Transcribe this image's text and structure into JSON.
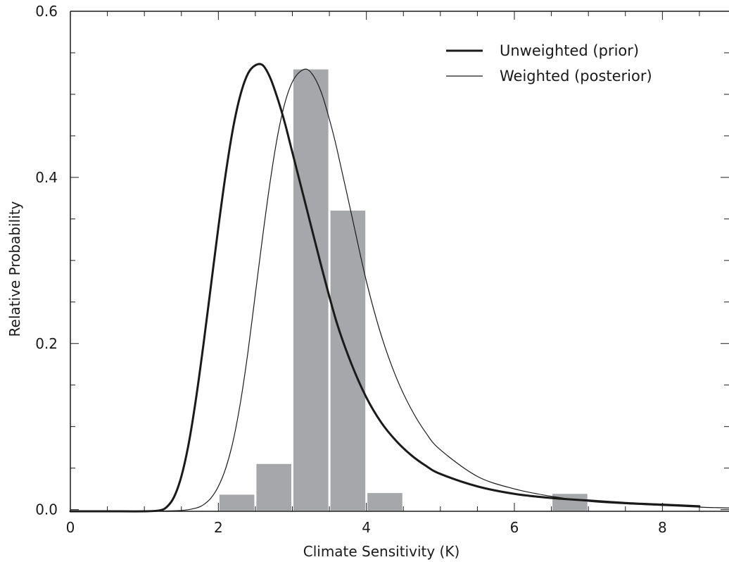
{
  "chart_data": {
    "type": "bar",
    "title": "",
    "xlabel": "Climate Sensitivity (K)",
    "ylabel": "Relative Probability",
    "xlim": [
      0,
      8.9
    ],
    "ylim": [
      -0.002,
      0.6
    ],
    "x_ticks": [
      0,
      2,
      4,
      6,
      8
    ],
    "x_tick_labels": [
      "0",
      "2",
      "4",
      "6",
      "8"
    ],
    "y_ticks": [
      0.0,
      0.2,
      0.4,
      0.6
    ],
    "y_tick_labels": [
      "0.0",
      "0.2",
      "0.4",
      "0.6"
    ],
    "grid": false,
    "legend_position": "top-right",
    "bar_color": "#a6a7ab",
    "histogram": {
      "bin_width": 0.5,
      "bins": [
        {
          "x0": 2.0,
          "x1": 2.5,
          "value": 0.018
        },
        {
          "x0": 2.5,
          "x1": 3.0,
          "value": 0.055
        },
        {
          "x0": 3.0,
          "x1": 3.5,
          "value": 0.53
        },
        {
          "x0": 3.5,
          "x1": 4.0,
          "value": 0.36
        },
        {
          "x0": 4.0,
          "x1": 4.5,
          "value": 0.02
        },
        {
          "x0": 4.5,
          "x1": 5.0,
          "value": 0.0
        },
        {
          "x0": 5.0,
          "x1": 5.5,
          "value": 0.0
        },
        {
          "x0": 5.5,
          "x1": 6.0,
          "value": 0.0
        },
        {
          "x0": 6.0,
          "x1": 6.5,
          "value": 0.0
        },
        {
          "x0": 6.5,
          "x1": 7.0,
          "value": 0.019
        }
      ]
    },
    "series": [
      {
        "name": "Unweighted (prior)",
        "style": "thick",
        "color": "#1a1a1a",
        "x": [
          0,
          0.5,
          1.0,
          1.2,
          1.3,
          1.4,
          1.5,
          1.6,
          1.7,
          1.8,
          1.9,
          2.0,
          2.1,
          2.2,
          2.3,
          2.4,
          2.5,
          2.6,
          2.7,
          2.8,
          2.9,
          3.0,
          3.2,
          3.4,
          3.6,
          3.8,
          4.0,
          4.2,
          4.4,
          4.6,
          4.8,
          5.0,
          5.5,
          6.0,
          6.5,
          7.0,
          7.5,
          8.0,
          8.5
        ],
        "y": [
          -0.002,
          -0.002,
          -0.002,
          -0.001,
          0.003,
          0.015,
          0.04,
          0.08,
          0.135,
          0.2,
          0.27,
          0.34,
          0.405,
          0.46,
          0.5,
          0.525,
          0.535,
          0.535,
          0.52,
          0.495,
          0.465,
          0.43,
          0.36,
          0.29,
          0.225,
          0.175,
          0.135,
          0.105,
          0.083,
          0.066,
          0.053,
          0.043,
          0.028,
          0.019,
          0.014,
          0.011,
          0.008,
          0.006,
          0.004
        ]
      },
      {
        "name": "Weighted (posterior)",
        "style": "thin",
        "color": "#1a1a1a",
        "x": [
          0,
          0.5,
          1.0,
          1.5,
          1.7,
          1.8,
          1.9,
          2.0,
          2.1,
          2.2,
          2.3,
          2.4,
          2.5,
          2.6,
          2.7,
          2.8,
          2.9,
          3.0,
          3.1,
          3.2,
          3.3,
          3.4,
          3.5,
          3.6,
          3.8,
          4.0,
          4.2,
          4.4,
          4.6,
          4.8,
          5.0,
          5.5,
          6.0,
          6.5,
          7.0,
          7.5,
          8.0,
          8.5,
          8.9
        ],
        "y": [
          -0.002,
          -0.002,
          -0.002,
          -0.001,
          0.002,
          0.006,
          0.014,
          0.028,
          0.05,
          0.083,
          0.13,
          0.19,
          0.26,
          0.33,
          0.395,
          0.45,
          0.49,
          0.515,
          0.527,
          0.53,
          0.52,
          0.5,
          0.47,
          0.435,
          0.355,
          0.275,
          0.21,
          0.16,
          0.122,
          0.093,
          0.072,
          0.04,
          0.025,
          0.016,
          0.01,
          0.007,
          0.005,
          0.003,
          0.002
        ]
      }
    ]
  }
}
